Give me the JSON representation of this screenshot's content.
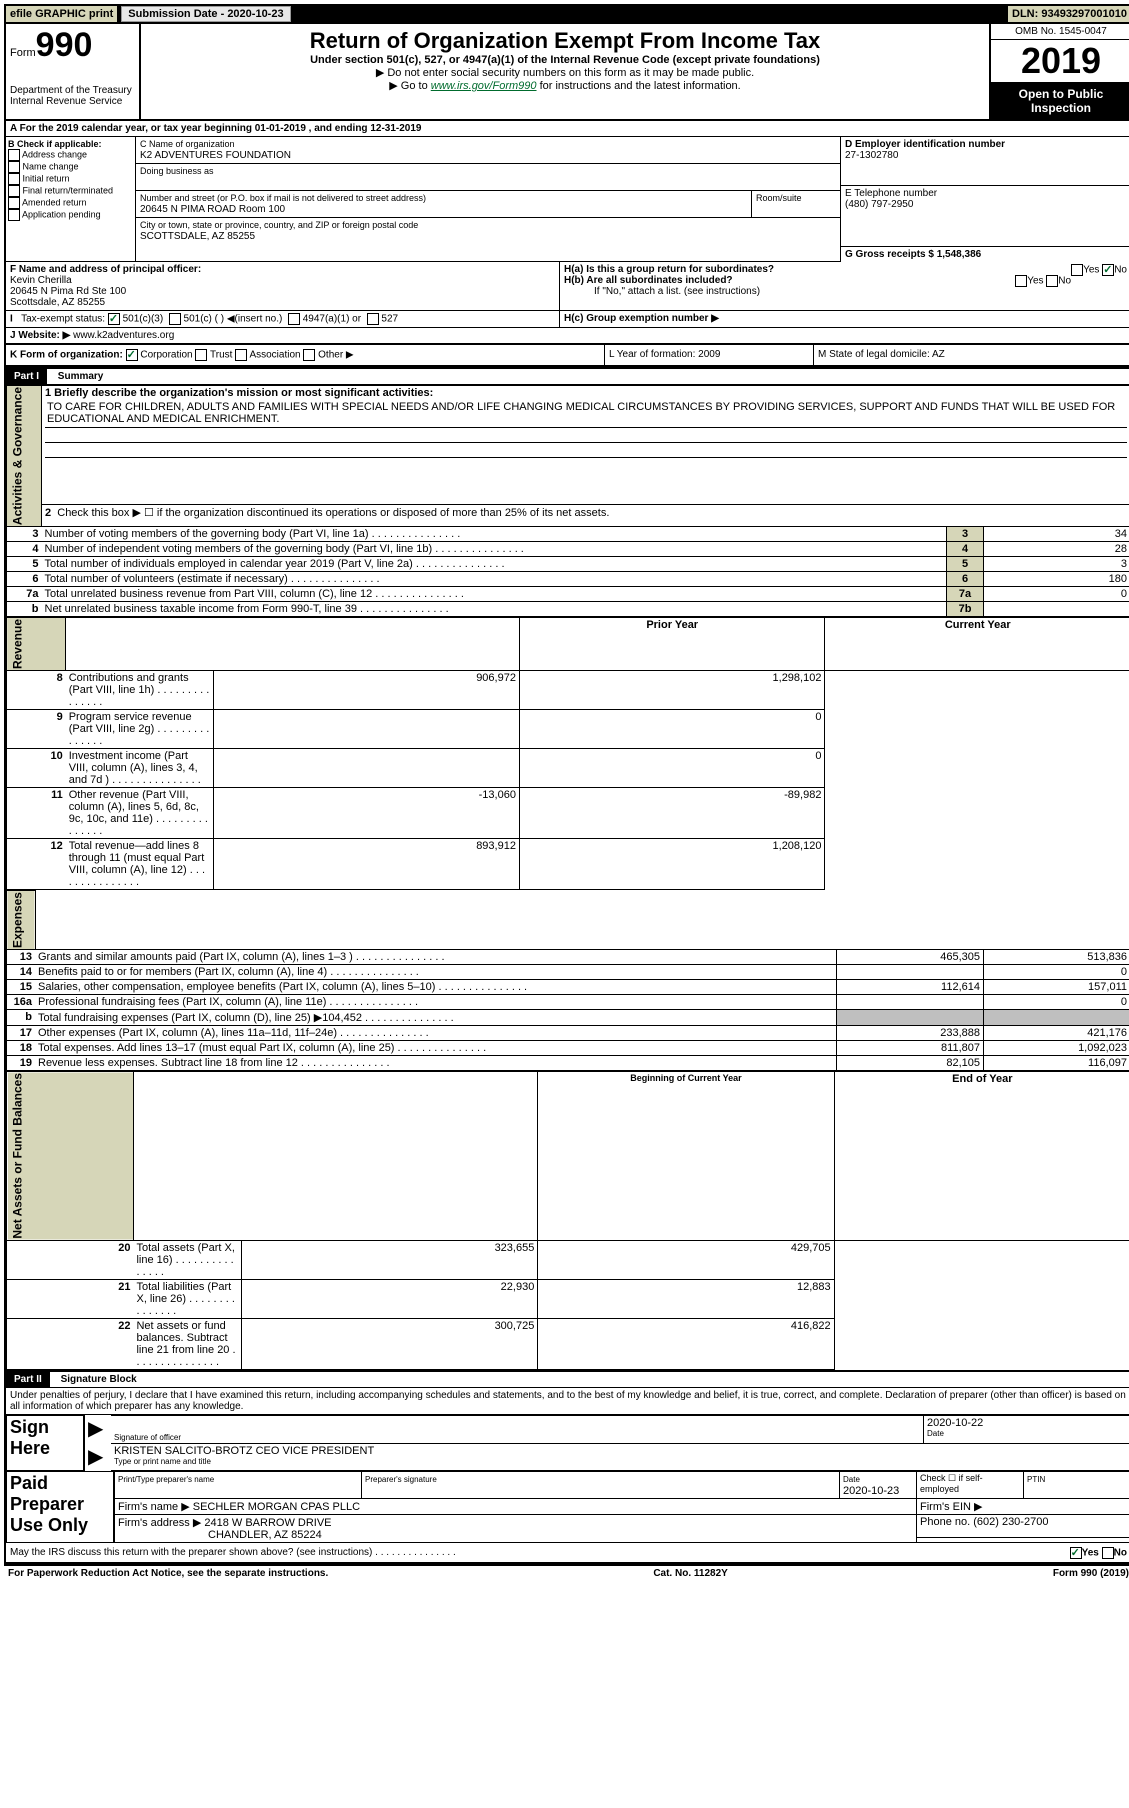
{
  "header": {
    "efile": "efile GRAPHIC print",
    "submission_label": "Submission Date - 2020-10-23",
    "dln": "DLN: 93493297001010"
  },
  "top": {
    "form_word": "Form",
    "form_num": "990",
    "dept": "Department of the Treasury\nInternal Revenue Service",
    "title": "Return of Organization Exempt From Income Tax",
    "subtitle": "Under section 501(c), 527, or 4947(a)(1) of the Internal Revenue Code (except private foundations)",
    "note1": "▶ Do not enter social security numbers on this form as it may be made public.",
    "note2_pre": "▶ Go to ",
    "note2_link": "www.irs.gov/Form990",
    "note2_post": " for instructions and the latest information.",
    "omb": "OMB No. 1545-0047",
    "year": "2019",
    "inspection1": "Open to Public",
    "inspection2": "Inspection"
  },
  "sectionA": "A For the 2019 calendar year, or tax year beginning 01-01-2019   , and ending 12-31-2019",
  "sectionB": {
    "label": "B Check if applicable:",
    "items": [
      "Address change",
      "Name change",
      "Initial return",
      "Final return/terminated",
      "Amended return",
      "Application pending"
    ]
  },
  "sectionC": {
    "name_label": "C Name of organization",
    "name": "K2 ADVENTURES FOUNDATION",
    "dba_label": "Doing business as",
    "addr_label": "Number and street (or P.O. box if mail is not delivered to street address)",
    "room_label": "Room/suite",
    "addr": "20645 N PIMA ROAD Room 100",
    "city_label": "City or town, state or province, country, and ZIP or foreign postal code",
    "city": "SCOTTSDALE, AZ  85255"
  },
  "sectionD": {
    "label": "D Employer identification number",
    "ein": "27-1302780",
    "phone_label": "E Telephone number",
    "phone": "(480) 797-2950",
    "gross_label": "G Gross receipts $ 1,548,386"
  },
  "sectionF": {
    "label": "F  Name and address of principal officer:",
    "name": "Kevin Cherilla",
    "addr1": "20645 N Pima Rd Ste 100",
    "addr2": "Scottsdale, AZ  85255"
  },
  "sectionH": {
    "a": "H(a)  Is this a group return for subordinates?",
    "b": "H(b)  Are all subordinates included?",
    "b_note": "If \"No,\" attach a list. (see instructions)",
    "c": "H(c)  Group exemption number ▶",
    "yes": "Yes",
    "no": "No"
  },
  "taxexempt": {
    "label": "Tax-exempt status:",
    "o1": "501(c)(3)",
    "o2": "501(c) (   ) ◀(insert no.)",
    "o3": "4947(a)(1) or",
    "o4": "527"
  },
  "website": {
    "label": "J   Website: ▶",
    "value": "www.k2adventures.org"
  },
  "sectionK": {
    "label": "K Form of organization:",
    "o1": "Corporation",
    "o2": "Trust",
    "o3": "Association",
    "o4": "Other ▶"
  },
  "sectionL": "L Year of formation: 2009",
  "sectionM": "M State of legal domicile: AZ",
  "part1": {
    "header": "Part I",
    "title": "Summary"
  },
  "mission": {
    "label": "1   Briefly describe the organization's mission or most significant activities:",
    "text": "TO CARE FOR CHILDREN, ADULTS AND FAMILIES WITH SPECIAL NEEDS AND/OR LIFE CHANGING MEDICAL CIRCUMSTANCES BY PROVIDING SERVICES, SUPPORT AND FUNDS THAT WILL BE USED FOR EDUCATIONAL AND MEDICAL ENRICHMENT."
  },
  "vert": {
    "activities": "Activities & Governance",
    "revenue": "Revenue",
    "expenses": "Expenses",
    "netassets": "Net Assets or Fund Balances"
  },
  "line2": "Check this box ▶ ☐  if the organization discontinued its operations or disposed of more than 25% of its net assets.",
  "lines_gov": [
    {
      "n": "3",
      "d": "Number of voting members of the governing body (Part VI, line 1a)",
      "box": "3",
      "v": "34"
    },
    {
      "n": "4",
      "d": "Number of independent voting members of the governing body (Part VI, line 1b)",
      "box": "4",
      "v": "28"
    },
    {
      "n": "5",
      "d": "Total number of individuals employed in calendar year 2019 (Part V, line 2a)",
      "box": "5",
      "v": "3"
    },
    {
      "n": "6",
      "d": "Total number of volunteers (estimate if necessary)",
      "box": "6",
      "v": "180"
    },
    {
      "n": "7a",
      "d": "Total unrelated business revenue from Part VIII, column (C), line 12",
      "box": "7a",
      "v": "0"
    },
    {
      "n": "b",
      "d": "Net unrelated business taxable income from Form 990-T, line 39",
      "box": "7b",
      "v": ""
    }
  ],
  "col_headers": {
    "prior": "Prior Year",
    "current": "Current Year"
  },
  "lines_rev": [
    {
      "n": "8",
      "d": "Contributions and grants (Part VIII, line 1h)",
      "p": "906,972",
      "c": "1,298,102"
    },
    {
      "n": "9",
      "d": "Program service revenue (Part VIII, line 2g)",
      "p": "",
      "c": "0"
    },
    {
      "n": "10",
      "d": "Investment income (Part VIII, column (A), lines 3, 4, and 7d )",
      "p": "",
      "c": "0"
    },
    {
      "n": "11",
      "d": "Other revenue (Part VIII, column (A), lines 5, 6d, 8c, 9c, 10c, and 11e)",
      "p": "-13,060",
      "c": "-89,982"
    },
    {
      "n": "12",
      "d": "Total revenue—add lines 8 through 11 (must equal Part VIII, column (A), line 12)",
      "p": "893,912",
      "c": "1,208,120"
    }
  ],
  "lines_exp": [
    {
      "n": "13",
      "d": "Grants and similar amounts paid (Part IX, column (A), lines 1–3 )",
      "p": "465,305",
      "c": "513,836"
    },
    {
      "n": "14",
      "d": "Benefits paid to or for members (Part IX, column (A), line 4)",
      "p": "",
      "c": "0"
    },
    {
      "n": "15",
      "d": "Salaries, other compensation, employee benefits (Part IX, column (A), lines 5–10)",
      "p": "112,614",
      "c": "157,011"
    },
    {
      "n": "16a",
      "d": "Professional fundraising fees (Part IX, column (A), line 11e)",
      "p": "",
      "c": "0"
    },
    {
      "n": "b",
      "d": "Total fundraising expenses (Part IX, column (D), line 25) ▶104,452",
      "p": "shaded",
      "c": "shaded"
    },
    {
      "n": "17",
      "d": "Other expenses (Part IX, column (A), lines 11a–11d, 11f–24e)",
      "p": "233,888",
      "c": "421,176"
    },
    {
      "n": "18",
      "d": "Total expenses. Add lines 13–17 (must equal Part IX, column (A), line 25)",
      "p": "811,807",
      "c": "1,092,023"
    },
    {
      "n": "19",
      "d": "Revenue less expenses. Subtract line 18 from line 12",
      "p": "82,105",
      "c": "116,097"
    }
  ],
  "col_headers2": {
    "begin": "Beginning of Current Year",
    "end": "End of Year"
  },
  "lines_net": [
    {
      "n": "20",
      "d": "Total assets (Part X, line 16)",
      "p": "323,655",
      "c": "429,705"
    },
    {
      "n": "21",
      "d": "Total liabilities (Part X, line 26)",
      "p": "22,930",
      "c": "12,883"
    },
    {
      "n": "22",
      "d": "Net assets or fund balances. Subtract line 21 from line 20",
      "p": "300,725",
      "c": "416,822"
    }
  ],
  "part2": {
    "header": "Part II",
    "title": "Signature Block"
  },
  "perjury": "Under penalties of perjury, I declare that I have examined this return, including accompanying schedules and statements, and to the best of my knowledge and belief, it is true, correct, and complete. Declaration of preparer (other than officer) is based on all information of which preparer has any knowledge.",
  "sign": {
    "here": "Sign Here",
    "sig_label": "Signature of officer",
    "date_label": "Date",
    "date_val": "2020-10-22",
    "name": "KRISTEN SALCITO-BROTZ  CEO VICE PRESIDENT",
    "type_label": "Type or print name and title"
  },
  "paid": {
    "title": "Paid Preparer Use Only",
    "pname_label": "Print/Type preparer's name",
    "psig_label": "Preparer's signature",
    "pdate_label": "Date",
    "pdate": "2020-10-23",
    "check_label": "Check ☐ if self-employed",
    "ptin_label": "PTIN",
    "firm_label": "Firm's name    ▶",
    "firm": "SECHLER MORGAN CPAS PLLC",
    "fein_label": "Firm's EIN ▶",
    "faddr_label": "Firm's address ▶",
    "faddr1": "2418 W BARROW DRIVE",
    "faddr2": "CHANDLER, AZ  85224",
    "fphone_label": "Phone no. (602) 230-2700"
  },
  "discuss": "May the IRS discuss this return with the preparer shown above? (see instructions)",
  "footer": {
    "left": "For Paperwork Reduction Act Notice, see the separate instructions.",
    "mid": "Cat. No. 11282Y",
    "right": "Form 990 (2019)"
  }
}
